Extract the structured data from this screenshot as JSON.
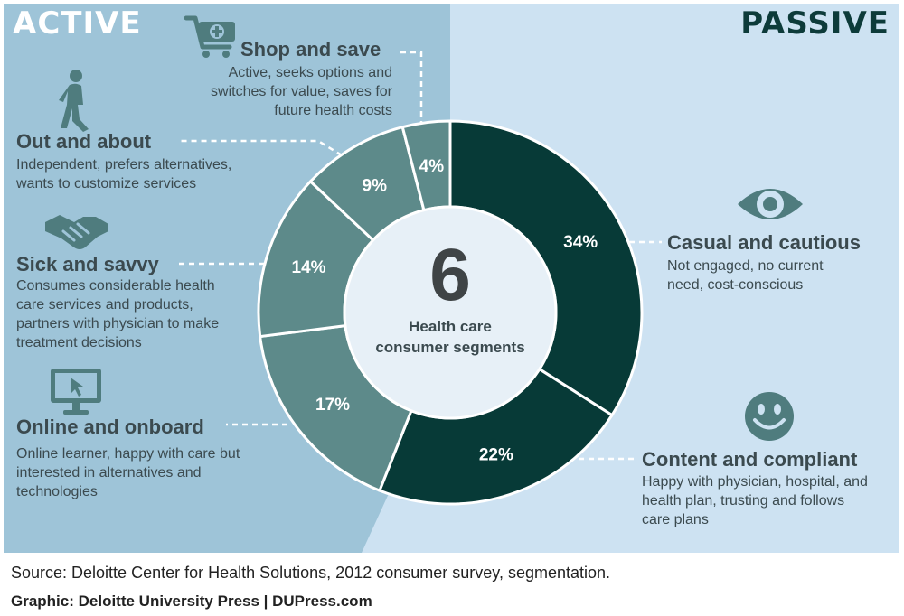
{
  "panels": {
    "active_title": "ACTIVE",
    "passive_title": "PASSIVE"
  },
  "colors": {
    "active_bg": "#9ec4d8",
    "passive_bg": "#cde2f2",
    "active_slice": "#5d8a8a",
    "passive_slice": "#073a37",
    "center": "#e7f0f7",
    "text": "#3b4a4f"
  },
  "center": {
    "number": "6",
    "line1": "Health care",
    "line2": "consumer segments"
  },
  "segments": [
    {
      "label": "Casual and cautious",
      "description_lines": [
        "Not engaged, no current",
        "need, cost-conscious"
      ],
      "percent_label": "34%",
      "icon": "eye-icon",
      "group": "PASSIVE"
    },
    {
      "label": "Content and compliant",
      "description_lines": [
        "Happy with physician, hospital, and",
        "health plan, trusting and follows",
        "care plans"
      ],
      "percent_label": "22%",
      "icon": "smiley-icon",
      "group": "PASSIVE"
    },
    {
      "label": "Online and onboard",
      "description_lines": [
        "Online learner, happy with care but",
        "interested in alternatives and",
        "technologies"
      ],
      "percent_label": "17%",
      "icon": "computer-monitor-icon",
      "group": "ACTIVE"
    },
    {
      "label": "Sick and savvy",
      "description_lines": [
        "Consumes considerable health",
        "care services and products,",
        "partners with physician to make",
        "treatment decisions"
      ],
      "percent_label": "14%",
      "icon": "handshake-icon",
      "group": "ACTIVE"
    },
    {
      "label": "Out and about",
      "description_lines": [
        "Independent, prefers alternatives,",
        "wants to customize services"
      ],
      "percent_label": "9%",
      "icon": "walking-person-icon",
      "group": "ACTIVE"
    },
    {
      "label": "Shop and save",
      "description_lines": [
        "Active, seeks options and",
        "switches for value, saves for",
        "future health costs"
      ],
      "percent_label": "4%",
      "icon": "shopping-cart-icon",
      "group": "ACTIVE"
    }
  ],
  "chart_data": {
    "type": "pie",
    "donut": true,
    "categories": [
      "Casual and cautious",
      "Content and compliant",
      "Online and onboard",
      "Sick and savvy",
      "Out and about",
      "Shop and save"
    ],
    "values": [
      34,
      22,
      17,
      14,
      9,
      4
    ],
    "groups": [
      "PASSIVE",
      "PASSIVE",
      "ACTIVE",
      "ACTIVE",
      "ACTIVE",
      "ACTIVE"
    ],
    "unit": "%",
    "start": "12 o'clock, clockwise",
    "title": "",
    "legend": "none"
  },
  "footer": {
    "source": "Source: Deloitte Center for Health Solutions, 2012 consumer survey, segmentation.",
    "credit": "Graphic: Deloitte University Press  |  DUPress.com"
  }
}
